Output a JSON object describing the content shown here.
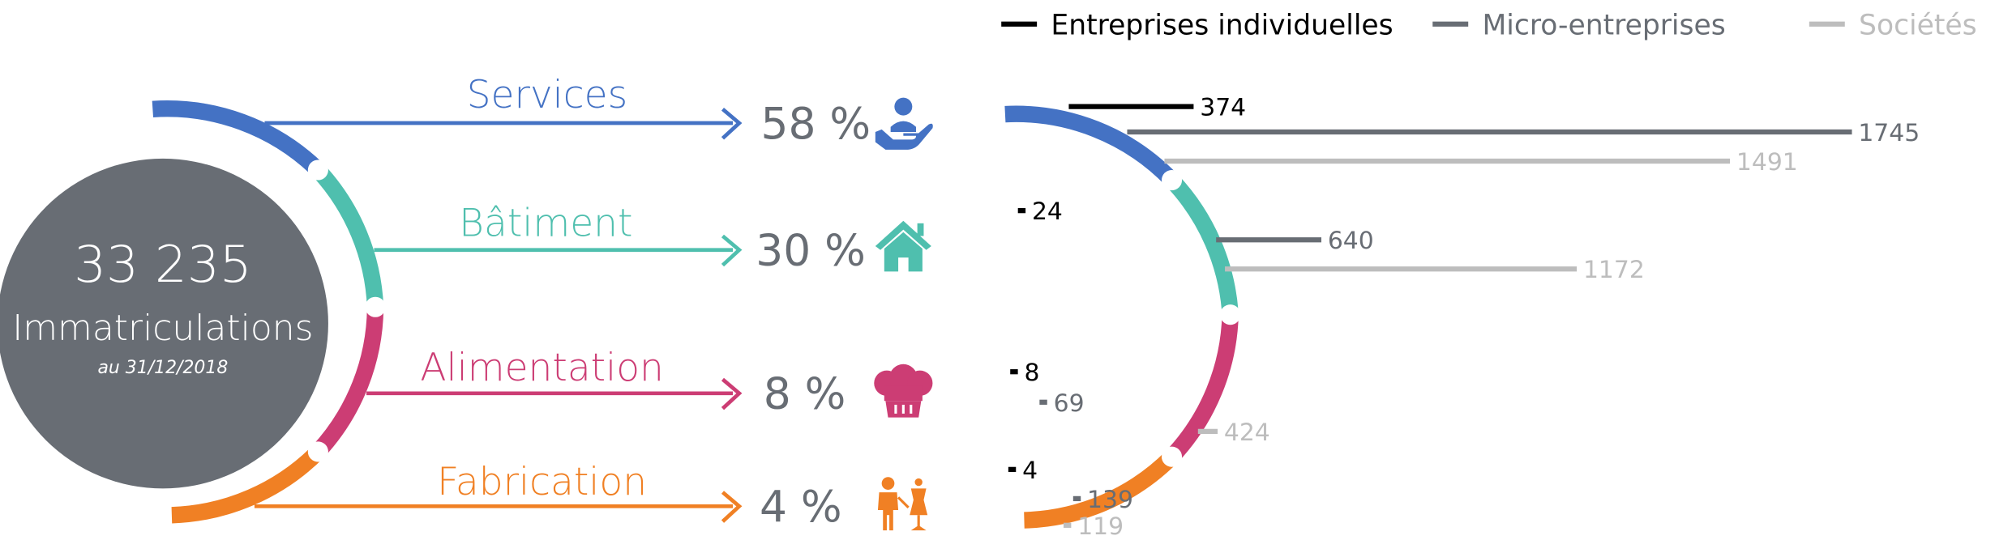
{
  "total": {
    "value": "33 235",
    "label": "Immatriculations",
    "date": "au 31/12/2018",
    "color": "#686d74"
  },
  "legend": {
    "items": [
      {
        "label": "Entreprises individuelles",
        "color": "#000000"
      },
      {
        "label": "Micro-entreprises",
        "color": "#686d74"
      },
      {
        "label": "Sociétés",
        "color": "#bdbdbd"
      }
    ]
  },
  "sectors": [
    {
      "name": "Services",
      "percent": "58 %",
      "color": "#4472c4",
      "icon": "hand-person-icon"
    },
    {
      "name": "Bâtiment",
      "percent": "30 %",
      "color": "#4fbfae",
      "icon": "house-icon"
    },
    {
      "name": "Alimentation",
      "percent": "8 %",
      "color": "#cc3d74",
      "icon": "chef-hat-icon"
    },
    {
      "name": "Fabrication",
      "percent": "4 %",
      "color": "#f08024",
      "icon": "tailor-mannequin-icon"
    }
  ],
  "chart_data": {
    "type": "bar",
    "orientation": "horizontal",
    "categories": [
      "Services",
      "Bâtiment",
      "Alimentation",
      "Fabrication"
    ],
    "series": [
      {
        "name": "Entreprises individuelles",
        "color": "#000000",
        "values": [
          374,
          24,
          8,
          4
        ]
      },
      {
        "name": "Micro-entreprises",
        "color": "#686d74",
        "values": [
          1745,
          640,
          69,
          139
        ]
      },
      {
        "name": "Sociétés",
        "color": "#bdbdbd",
        "values": [
          1491,
          1172,
          424,
          119
        ]
      }
    ],
    "labels": [
      [
        "374",
        "1745",
        "1491"
      ],
      [
        "24",
        "640",
        "1172"
      ],
      [
        "8",
        "69",
        "424"
      ],
      [
        "4",
        "139",
        "119"
      ]
    ],
    "legend_position": "top",
    "grid": false
  }
}
